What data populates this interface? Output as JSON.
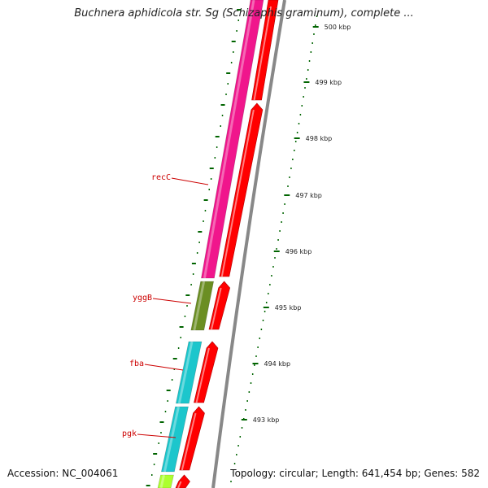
{
  "title": "Buchnera aphidicola str. Sg (Schizaphis graminum), complete ...",
  "footer": {
    "accession": "Accession: NC_004061",
    "summary": "Topology: circular; Length: 641,454 bp; Genes: 582"
  },
  "ticks": [
    {
      "label": "500 kbp"
    },
    {
      "label": "499 kbp"
    },
    {
      "label": "498 kbp"
    },
    {
      "label": "497 kbp"
    },
    {
      "label": "496 kbp"
    },
    {
      "label": "495 kbp"
    },
    {
      "label": "494 kbp"
    },
    {
      "label": "493 kbp"
    }
  ],
  "genes": [
    {
      "label": "recC",
      "color": "#f0168c"
    },
    {
      "label": "yggB",
      "color": "#6b8e23"
    },
    {
      "label": "fba",
      "color": "#1cc6cc"
    },
    {
      "label": "pgk",
      "color": "#1cc6cc"
    }
  ],
  "colors": {
    "cds_track": "#ff0000",
    "backbone": "#888888",
    "tick": "#006400",
    "label_line": "#cc0000",
    "bottom_gene": "#adff2f"
  }
}
